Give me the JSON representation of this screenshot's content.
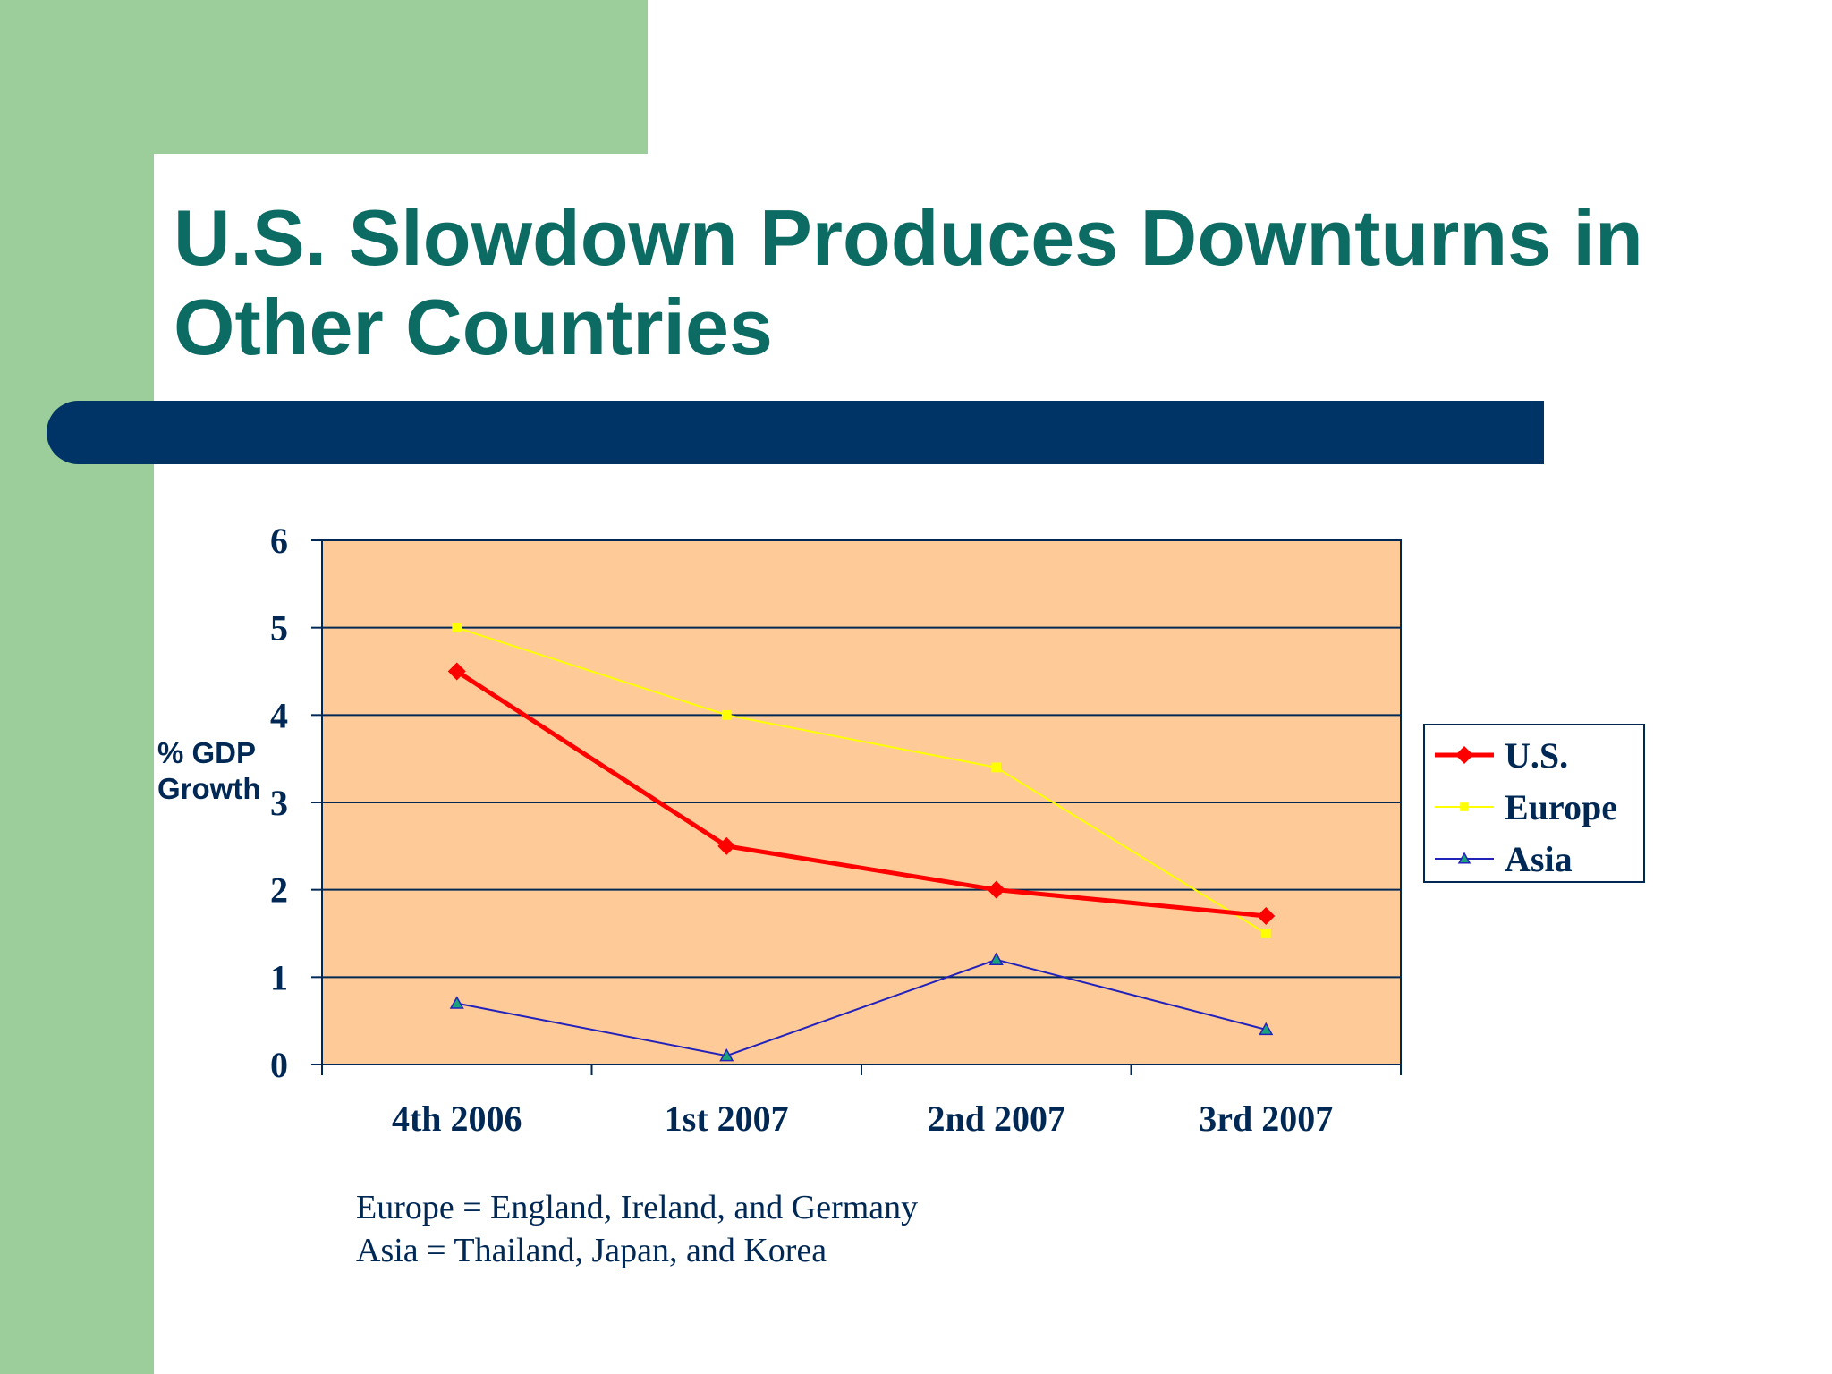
{
  "slide": {
    "title": "U.S. Slowdown Produces Downturns in Other Countries",
    "notes": [
      "Europe = England, Ireland, and Germany",
      "Asia = Thailand, Japan, and Korea"
    ],
    "colors": {
      "accent_green": "#9bce9b",
      "title_teal": "#0c6b63",
      "bar_navy": "#003366",
      "plot_background": "#fecb98"
    }
  },
  "chart_data": {
    "type": "line",
    "ylabel": "% GDP Growth",
    "categories": [
      "4th 2006",
      "1st 2007",
      "2nd 2007",
      "3rd 2007"
    ],
    "ylim": [
      0,
      6
    ],
    "yticks": [
      "0",
      "1",
      "2",
      "3",
      "4",
      "5",
      "6"
    ],
    "grid": true,
    "legend": "right",
    "series": [
      {
        "name": "U.S.",
        "values": [
          4.5,
          2.5,
          2.0,
          1.7
        ],
        "color": "#ff0000",
        "marker": "diamond"
      },
      {
        "name": "Europe",
        "values": [
          5.0,
          4.0,
          3.4,
          1.5
        ],
        "color": "#ffff00",
        "marker": "square"
      },
      {
        "name": "Asia",
        "values": [
          0.7,
          0.1,
          1.2,
          0.4
        ],
        "color": "#2222bb",
        "marker": "triangle"
      }
    ]
  }
}
